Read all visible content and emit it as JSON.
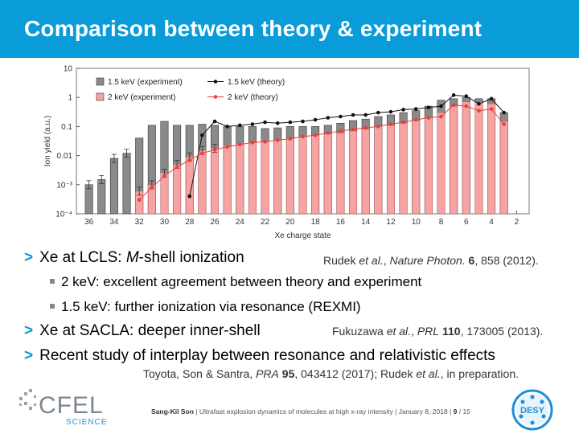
{
  "header": {
    "title": "Comparison between theory & experiment"
  },
  "chart_data": {
    "type": "bar",
    "xlabel": "Xe charge state",
    "ylabel": "Ion yield (a.u.)",
    "yscale": "log",
    "ylim": [
      0.0001,
      10
    ],
    "xlim": [
      37,
      1
    ],
    "x_ticks": [
      "36",
      "34",
      "32",
      "30",
      "28",
      "26",
      "24",
      "22",
      "20",
      "18",
      "16",
      "14",
      "12",
      "10",
      "8",
      "6",
      "4",
      "2"
    ],
    "y_ticks": [
      "10",
      "1",
      "0.1",
      "0.01",
      "10⁻³",
      "10⁻⁴"
    ],
    "legend": [
      "1.5 keV (experiment)",
      "2 keV (experiment)",
      "1.5 keV (theory)",
      "2 keV (theory)"
    ],
    "colors": {
      "exp_1_5": "#8a8a8a",
      "exp_2": "#f5a3a3",
      "theory_1_5": "#111111",
      "theory_2": "#e8403a"
    },
    "categories": [
      36,
      35,
      34,
      33,
      32,
      31,
      30,
      29,
      28,
      27,
      26,
      25,
      24,
      23,
      22,
      21,
      20,
      19,
      18,
      17,
      16,
      15,
      14,
      13,
      12,
      11,
      10,
      9,
      8,
      7,
      6,
      5,
      4,
      3
    ],
    "series": [
      {
        "name": "1.5 keV (experiment)",
        "values": [
          0.001,
          0.0015,
          0.008,
          0.012,
          0.04,
          0.11,
          0.15,
          0.11,
          0.11,
          0.12,
          0.11,
          0.1,
          0.1,
          0.1,
          0.085,
          0.09,
          0.1,
          0.1,
          0.1,
          0.11,
          0.13,
          0.16,
          0.18,
          0.22,
          0.25,
          0.3,
          0.35,
          0.5,
          0.8,
          0.9,
          1.0,
          0.9,
          0.9,
          0.3
        ]
      },
      {
        "name": "2 keV (experiment)",
        "values": [
          null,
          null,
          null,
          null,
          0.0006,
          0.001,
          0.0025,
          0.005,
          0.009,
          0.015,
          0.018,
          0.022,
          0.025,
          0.028,
          0.03,
          0.035,
          0.04,
          0.045,
          0.05,
          0.055,
          0.06,
          0.07,
          0.08,
          0.1,
          0.11,
          0.13,
          0.16,
          0.2,
          0.3,
          0.5,
          0.7,
          0.7,
          0.6,
          0.15
        ]
      },
      {
        "name": "1.5 keV (theory)",
        "values": [
          null,
          null,
          null,
          null,
          null,
          null,
          null,
          null,
          0.0004,
          0.05,
          0.15,
          0.1,
          0.11,
          0.12,
          0.14,
          0.13,
          0.14,
          0.15,
          0.17,
          0.2,
          0.22,
          0.25,
          0.25,
          0.3,
          0.32,
          0.38,
          0.4,
          0.45,
          0.5,
          1.2,
          1.1,
          0.6,
          0.9,
          0.3
        ]
      },
      {
        "name": "2 keV (theory)",
        "values": [
          null,
          null,
          null,
          null,
          0.0003,
          0.0008,
          0.002,
          0.004,
          0.007,
          0.012,
          0.016,
          0.02,
          0.024,
          0.028,
          0.03,
          0.034,
          0.038,
          0.045,
          0.05,
          0.06,
          0.07,
          0.08,
          0.09,
          0.1,
          0.12,
          0.14,
          0.17,
          0.2,
          0.22,
          0.55,
          0.5,
          0.35,
          0.4,
          0.12
        ]
      }
    ]
  },
  "bullets": {
    "b1": "Xe at LCLS: ",
    "b1_italic": "M",
    "b1_rest": "-shell ionization",
    "b1_sub1": "2 keV: excellent agreement between theory and experiment",
    "b1_sub2": "1.5 keV: further ionization via resonance (REXMI)",
    "b2": "Xe at SACLA: deeper inner-shell",
    "b3": "Recent study of interplay between resonance and relativistic effects",
    "marker": ">"
  },
  "refs": {
    "r1_a": "Rudek ",
    "r1_et": "et al.",
    "r1_b": ", ",
    "r1_j": "Nature Photon.",
    "r1_v": " 6",
    "r1_c": ", 858 (2012).",
    "r2_a": "Fukuzawa ",
    "r2_et": "et al.",
    "r2_b": ", ",
    "r2_j": "PRL",
    "r2_v": " 110",
    "r2_c": ", 173005 (2013).",
    "r3_a": "Toyota, Son & Santra, ",
    "r3_j": "PRA",
    "r3_v": " 95",
    "r3_c": ", 043412 (2017); Rudek ",
    "r3_et": "et al.",
    "r3_d": ", in preparation."
  },
  "footer": {
    "author": "Sang-Kil Son",
    "talk": "Ultrafast explosion dynamics of molecules at high x-ray intensity",
    "date": "January 8, 2018",
    "page": "9",
    "total": "15",
    "sep": " | ",
    "slash": " / ",
    "cfel_logo": "CFEL",
    "cfel_sub": "SCIENCE",
    "desy_logo": "DESY"
  }
}
